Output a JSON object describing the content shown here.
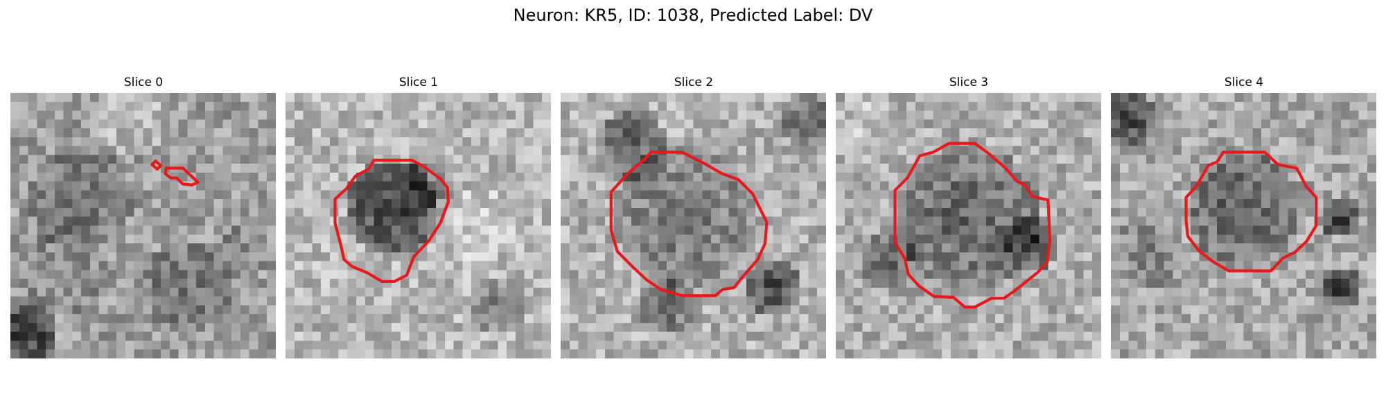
{
  "title": "Neuron: KR5, ID: 1038, Predicted Label: DV",
  "contour_color": "#e8191c",
  "panels": [
    {
      "title": "Slice 0",
      "seed": 11
    },
    {
      "title": "Slice 1",
      "seed": 23
    },
    {
      "title": "Slice 2",
      "seed": 37
    },
    {
      "title": "Slice 3",
      "seed": 41
    },
    {
      "title": "Slice 4",
      "seed": 59
    }
  ]
}
